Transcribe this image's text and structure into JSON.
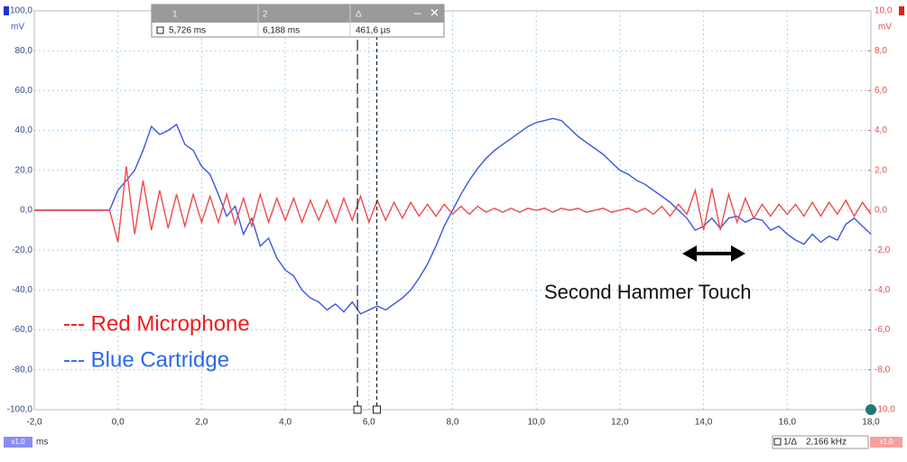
{
  "chart_data": {
    "type": "line",
    "y_unit": "mV",
    "y2_unit": "mV",
    "x_unit": "ms",
    "xlim": [
      -2,
      18
    ],
    "xticks": [
      {
        "value": -2,
        "label": "-2,0"
      },
      {
        "value": 0,
        "label": "0,0"
      },
      {
        "value": 2,
        "label": "2,0"
      },
      {
        "value": 4,
        "label": "4,0"
      },
      {
        "value": 6,
        "label": "6,0"
      },
      {
        "value": 8,
        "label": "8,0"
      },
      {
        "value": 10,
        "label": "10,0"
      },
      {
        "value": 12,
        "label": "12,0"
      },
      {
        "value": 14,
        "label": "14,0"
      },
      {
        "value": 16,
        "label": "16,0"
      },
      {
        "value": 18,
        "label": "18,0"
      }
    ],
    "ylim": [
      -100,
      100
    ],
    "yticks": [
      {
        "value": 100,
        "label": "100,0"
      },
      {
        "value": 80,
        "label": "80,0"
      },
      {
        "value": 60,
        "label": "60,0"
      },
      {
        "value": 40,
        "label": "40,0"
      },
      {
        "value": 20,
        "label": "20,0"
      },
      {
        "value": 0,
        "label": "0,0"
      },
      {
        "value": -20,
        "label": "-20,0"
      },
      {
        "value": -40,
        "label": "-40,0"
      },
      {
        "value": -60,
        "label": "-60,0"
      },
      {
        "value": -80,
        "label": "-80,0"
      },
      {
        "value": -100,
        "label": "-100,0"
      }
    ],
    "y2lim": [
      -10,
      10
    ],
    "y2ticks": [
      {
        "value": 10,
        "label": "10,0"
      },
      {
        "value": 8,
        "label": "8,0"
      },
      {
        "value": 6,
        "label": "6,0"
      },
      {
        "value": 4,
        "label": "4,0"
      },
      {
        "value": 2,
        "label": "2,0"
      },
      {
        "value": 0,
        "label": "0,0"
      },
      {
        "value": -2,
        "label": "-2,0"
      },
      {
        "value": -4,
        "label": "-4,0"
      },
      {
        "value": -6,
        "label": "-6,0"
      },
      {
        "value": -8,
        "label": "-8,0"
      },
      {
        "value": -10,
        "label": "-10,0"
      }
    ],
    "grid": true,
    "x": [
      -2,
      -1.8,
      -1.6,
      -1.4,
      -1.2,
      -1,
      -0.8,
      -0.6,
      -0.4,
      -0.2,
      0,
      0.2,
      0.4,
      0.6,
      0.8,
      1,
      1.2,
      1.4,
      1.6,
      1.8,
      2,
      2.2,
      2.4,
      2.6,
      2.8,
      3,
      3.2,
      3.4,
      3.6,
      3.8,
      4,
      4.2,
      4.4,
      4.6,
      4.8,
      5,
      5.2,
      5.4,
      5.6,
      5.8,
      6,
      6.2,
      6.4,
      6.6,
      6.8,
      7,
      7.2,
      7.4,
      7.6,
      7.8,
      8,
      8.2,
      8.4,
      8.6,
      8.8,
      9,
      9.2,
      9.4,
      9.6,
      9.8,
      10,
      10.2,
      10.4,
      10.6,
      10.8,
      11,
      11.2,
      11.4,
      11.6,
      11.8,
      12,
      12.2,
      12.4,
      12.6,
      12.8,
      13,
      13.2,
      13.4,
      13.6,
      13.8,
      14,
      14.2,
      14.4,
      14.6,
      14.8,
      15,
      15.2,
      15.4,
      15.6,
      15.8,
      16,
      16.2,
      16.4,
      16.6,
      16.8,
      17,
      17.2,
      17.4,
      17.6,
      17.8,
      18
    ],
    "series": [
      {
        "color": "#3d55e0",
        "axis": "y",
        "values": [
          0,
          0,
          0,
          0,
          0,
          0,
          0,
          0,
          0,
          0,
          10,
          15,
          20,
          30,
          42,
          38,
          40,
          43,
          33,
          30,
          22,
          18,
          8,
          -3,
          2,
          -12,
          -4,
          -18,
          -14,
          -24,
          -30,
          -33,
          -40,
          -44,
          -46,
          -50,
          -47,
          -51,
          -46,
          -52,
          -50,
          -48,
          -50,
          -47,
          -44,
          -40,
          -34,
          -27,
          -18,
          -8,
          0,
          8,
          15,
          21,
          26,
          30,
          33,
          36,
          39,
          42,
          44,
          45,
          46,
          45,
          41,
          37,
          34,
          31,
          28,
          24,
          20,
          18,
          15,
          13,
          10,
          7,
          4,
          0,
          -4,
          -10,
          -8,
          -4,
          -9,
          -4,
          -3,
          -6,
          -4,
          -5,
          -10,
          -8,
          -12,
          -15,
          -17,
          -12,
          -16,
          -13,
          -15,
          -7,
          -4,
          -8,
          -12
        ]
      },
      {
        "color": "#f04a4a",
        "axis": "y2",
        "values": [
          0,
          0,
          0,
          0,
          0,
          0,
          0,
          0,
          0,
          0,
          -1.6,
          2.2,
          -1.2,
          1.5,
          -1,
          1,
          -0.9,
          0.8,
          -0.8,
          0.8,
          -0.6,
          0.7,
          -0.6,
          0.8,
          -0.7,
          0.6,
          -0.8,
          0.8,
          -0.6,
          0.6,
          -0.5,
          0.6,
          -0.6,
          0.5,
          -0.5,
          0.5,
          -0.6,
          0.6,
          -0.5,
          0.7,
          -0.6,
          0.5,
          -0.5,
          0.4,
          -0.4,
          0.4,
          -0.3,
          0.3,
          -0.3,
          0.3,
          -0.2,
          0.2,
          -0.2,
          0.2,
          -0.1,
          0.1,
          -0.1,
          0.1,
          -0.1,
          0.1,
          0,
          0.1,
          -0.1,
          0.1,
          0,
          0.1,
          -0.1,
          0,
          0.1,
          -0.1,
          0,
          0.1,
          -0.1,
          0.1,
          -0.2,
          0.2,
          -0.3,
          0.3,
          -0.2,
          1,
          -1,
          1.1,
          -1,
          0.8,
          -0.6,
          0.6,
          -0.4,
          0.3,
          -0.3,
          0.3,
          -0.2,
          0.3,
          -0.3,
          0.4,
          -0.3,
          0.4,
          -0.2,
          0.5,
          -0.3,
          0.4,
          -0.2
        ]
      }
    ],
    "cursors": [
      5.726,
      6.188
    ],
    "cursor_readout": {
      "headers": [
        "1",
        "2",
        "Δ"
      ],
      "values": [
        "5,726 ms",
        "6,188 ms",
        "461,6 µs"
      ]
    },
    "frequency_readout": {
      "label": "1/Δ",
      "value": "2,166 kHz"
    },
    "x_scale_badge": "x1,0",
    "y2_scale_badge": "x1,0",
    "annotations": {
      "red": "--- Red Microphone",
      "blue": "--- Blue Cartridge",
      "touch": "Second Hammer Touch"
    }
  }
}
